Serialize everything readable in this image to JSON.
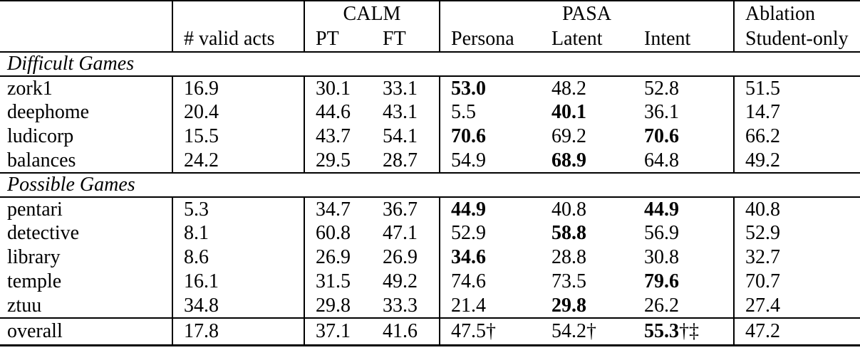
{
  "table": {
    "header": {
      "groups": [
        {
          "label": "CALM",
          "span": 2
        },
        {
          "label": "PASA",
          "span": 3
        },
        {
          "label": "Ablation",
          "span": 1
        }
      ],
      "columns": [
        "",
        "# valid acts",
        "PT",
        "FT",
        "Persona",
        "Latent",
        "Intent",
        "Student-only"
      ]
    },
    "column_keys": [
      "game",
      "valid-acts",
      "calm-pt",
      "calm-ft",
      "pasa-persona",
      "pasa-latent",
      "pasa-intent",
      "student-only"
    ],
    "sections": [
      {
        "title": "Difficult Games",
        "rows": [
          {
            "name": "zork1",
            "cells": [
              {
                "t": "16.9"
              },
              {
                "t": "30.1"
              },
              {
                "t": "33.1"
              },
              {
                "t": "53.0",
                "b": true
              },
              {
                "t": "48.2"
              },
              {
                "t": "52.8"
              },
              {
                "t": "51.5"
              }
            ]
          },
          {
            "name": "deephome",
            "cells": [
              {
                "t": "20.4"
              },
              {
                "t": "44.6"
              },
              {
                "t": "43.1"
              },
              {
                "t": "5.5"
              },
              {
                "t": "40.1",
                "b": true
              },
              {
                "t": "36.1"
              },
              {
                "t": "14.7"
              }
            ]
          },
          {
            "name": "ludicorp",
            "cells": [
              {
                "t": "15.5"
              },
              {
                "t": "43.7"
              },
              {
                "t": "54.1"
              },
              {
                "t": "70.6",
                "b": true
              },
              {
                "t": "69.2"
              },
              {
                "t": "70.6",
                "b": true
              },
              {
                "t": "66.2"
              }
            ]
          },
          {
            "name": "balances",
            "cells": [
              {
                "t": "24.2"
              },
              {
                "t": "29.5"
              },
              {
                "t": "28.7"
              },
              {
                "t": "54.9"
              },
              {
                "t": "68.9",
                "b": true
              },
              {
                "t": "64.8"
              },
              {
                "t": "49.2"
              }
            ]
          }
        ]
      },
      {
        "title": "Possible Games",
        "rows": [
          {
            "name": "pentari",
            "cells": [
              {
                "t": "5.3"
              },
              {
                "t": "34.7"
              },
              {
                "t": "36.7"
              },
              {
                "t": "44.9",
                "b": true
              },
              {
                "t": "40.8"
              },
              {
                "t": "44.9",
                "b": true
              },
              {
                "t": "40.8"
              }
            ]
          },
          {
            "name": "detective",
            "cells": [
              {
                "t": "8.1"
              },
              {
                "t": "60.8"
              },
              {
                "t": "47.1"
              },
              {
                "t": "52.9"
              },
              {
                "t": "58.8",
                "b": true
              },
              {
                "t": "56.9"
              },
              {
                "t": "52.9"
              }
            ]
          },
          {
            "name": "library",
            "cells": [
              {
                "t": "8.6"
              },
              {
                "t": "26.9"
              },
              {
                "t": "26.9"
              },
              {
                "t": "34.6",
                "b": true
              },
              {
                "t": "28.8"
              },
              {
                "t": "30.8"
              },
              {
                "t": "32.7"
              }
            ]
          },
          {
            "name": "temple",
            "cells": [
              {
                "t": "16.1"
              },
              {
                "t": "31.5"
              },
              {
                "t": "49.2"
              },
              {
                "t": "74.6"
              },
              {
                "t": "73.5"
              },
              {
                "t": "79.6",
                "b": true
              },
              {
                "t": "70.7"
              }
            ]
          },
          {
            "name": "ztuu",
            "cells": [
              {
                "t": "34.8"
              },
              {
                "t": "29.8"
              },
              {
                "t": "33.3"
              },
              {
                "t": "21.4"
              },
              {
                "t": "29.8",
                "b": true
              },
              {
                "t": "26.2"
              },
              {
                "t": "27.4"
              }
            ]
          }
        ]
      },
      {
        "title": null,
        "overall": true,
        "rows": [
          {
            "name": "overall",
            "cells": [
              {
                "t": "17.8"
              },
              {
                "t": "37.1"
              },
              {
                "t": "41.6"
              },
              {
                "t": "47.5†"
              },
              {
                "t": "54.2†"
              },
              {
                "t": "55.3",
                "b": true,
                "s": "†‡"
              },
              {
                "t": "47.2"
              }
            ]
          }
        ]
      }
    ]
  },
  "colors": {
    "text": "#000000",
    "rule": "#000000",
    "background": "#ffffff"
  }
}
